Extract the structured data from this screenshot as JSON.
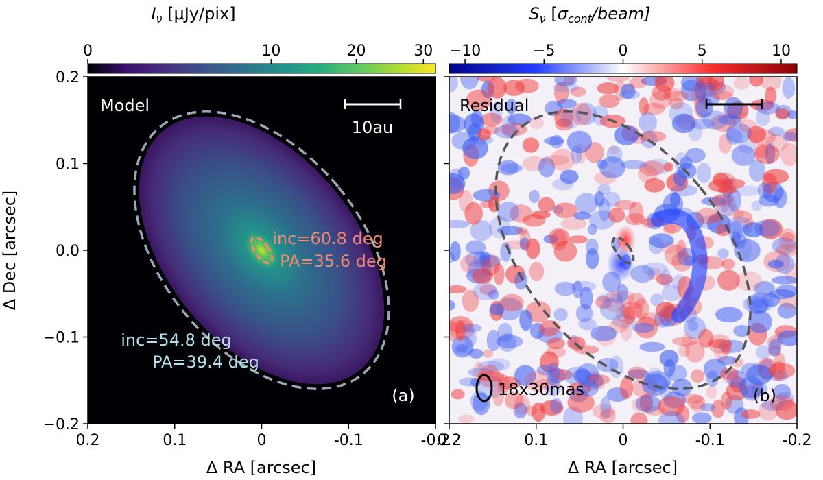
{
  "chart_data": [
    {
      "type": "heatmap",
      "panel_tag": "(a)",
      "label": "Model",
      "xlabel": "Δ RA [arcsec]",
      "ylabel": "Δ Dec [arcsec]",
      "xlim": [
        0.2,
        -0.2
      ],
      "ylim": [
        -0.2,
        0.2
      ],
      "x_ticks": [
        0.2,
        0.1,
        0,
        -0.1,
        -0.2
      ],
      "x_tick_labels": [
        "0.2",
        "0.1",
        "0",
        "-0.1",
        "-0.2"
      ],
      "y_ticks": [
        0.2,
        0.1,
        0,
        -0.1,
        -0.2
      ],
      "y_tick_labels": [
        "0.2",
        "0.1",
        "0.0",
        "−0.1",
        "−0.2"
      ],
      "colorbar": {
        "title": "I_ν [μJy/pix]",
        "title_main": "I",
        "title_sub": "ν",
        "title_rest": " [μJy/pix]",
        "scale": "power",
        "range": [
          0,
          32
        ],
        "ticks": [
          0,
          10,
          20,
          30
        ],
        "tick_labels": [
          "0",
          "10",
          "20",
          "30"
        ],
        "colormap": [
          "#000004",
          "#3b0f70",
          "#472f7d",
          "#3b528b",
          "#2c728e",
          "#21918c",
          "#27ad81",
          "#5ec962",
          "#aadc32",
          "#fde725"
        ]
      },
      "scalebar_label": "10au",
      "ellipses": [
        {
          "inc_deg": 54.8,
          "pa_deg": 39.4,
          "label_inc": "inc=54.8 deg",
          "label_pa": "PA=39.4 deg",
          "color": "#aee4e8",
          "stroke": "#9aa7b4"
        },
        {
          "inc_deg": 60.8,
          "pa_deg": 35.6,
          "label_inc": "inc=60.8 deg",
          "label_pa": "PA=35.6 deg",
          "color": "#f28a6c",
          "stroke": "#f28a6c"
        }
      ]
    },
    {
      "type": "heatmap",
      "panel_tag": "(b)",
      "label": "Residual",
      "xlabel": "Δ RA [arcsec]",
      "xlim": [
        0.2,
        -0.2
      ],
      "ylim": [
        -0.2,
        0.2
      ],
      "x_ticks": [
        0.2,
        0.1,
        0,
        -0.1,
        -0.2
      ],
      "x_tick_labels": [
        "0.2",
        "0.1",
        "0",
        "-0.1",
        "-0.2"
      ],
      "colorbar": {
        "title": "S_ν [σ_cont/beam]",
        "title_main": "S",
        "title_sub": "ν",
        "title_pre": " [",
        "title_sigma": "σ",
        "title_sigma_sub": "cont",
        "title_post": "/beam]",
        "range": [
          -11,
          11
        ],
        "ticks": [
          -10,
          -5,
          0,
          5,
          10
        ],
        "tick_labels": [
          "−10",
          "−5",
          "0",
          "5",
          "10"
        ],
        "colormap": [
          "#00008b",
          "#2040ff",
          "#ffffff",
          "#ff3030",
          "#8b0000"
        ]
      },
      "beam_label": "18x30mas",
      "beam_major_mas": 30,
      "beam_minor_mas": 18
    }
  ]
}
